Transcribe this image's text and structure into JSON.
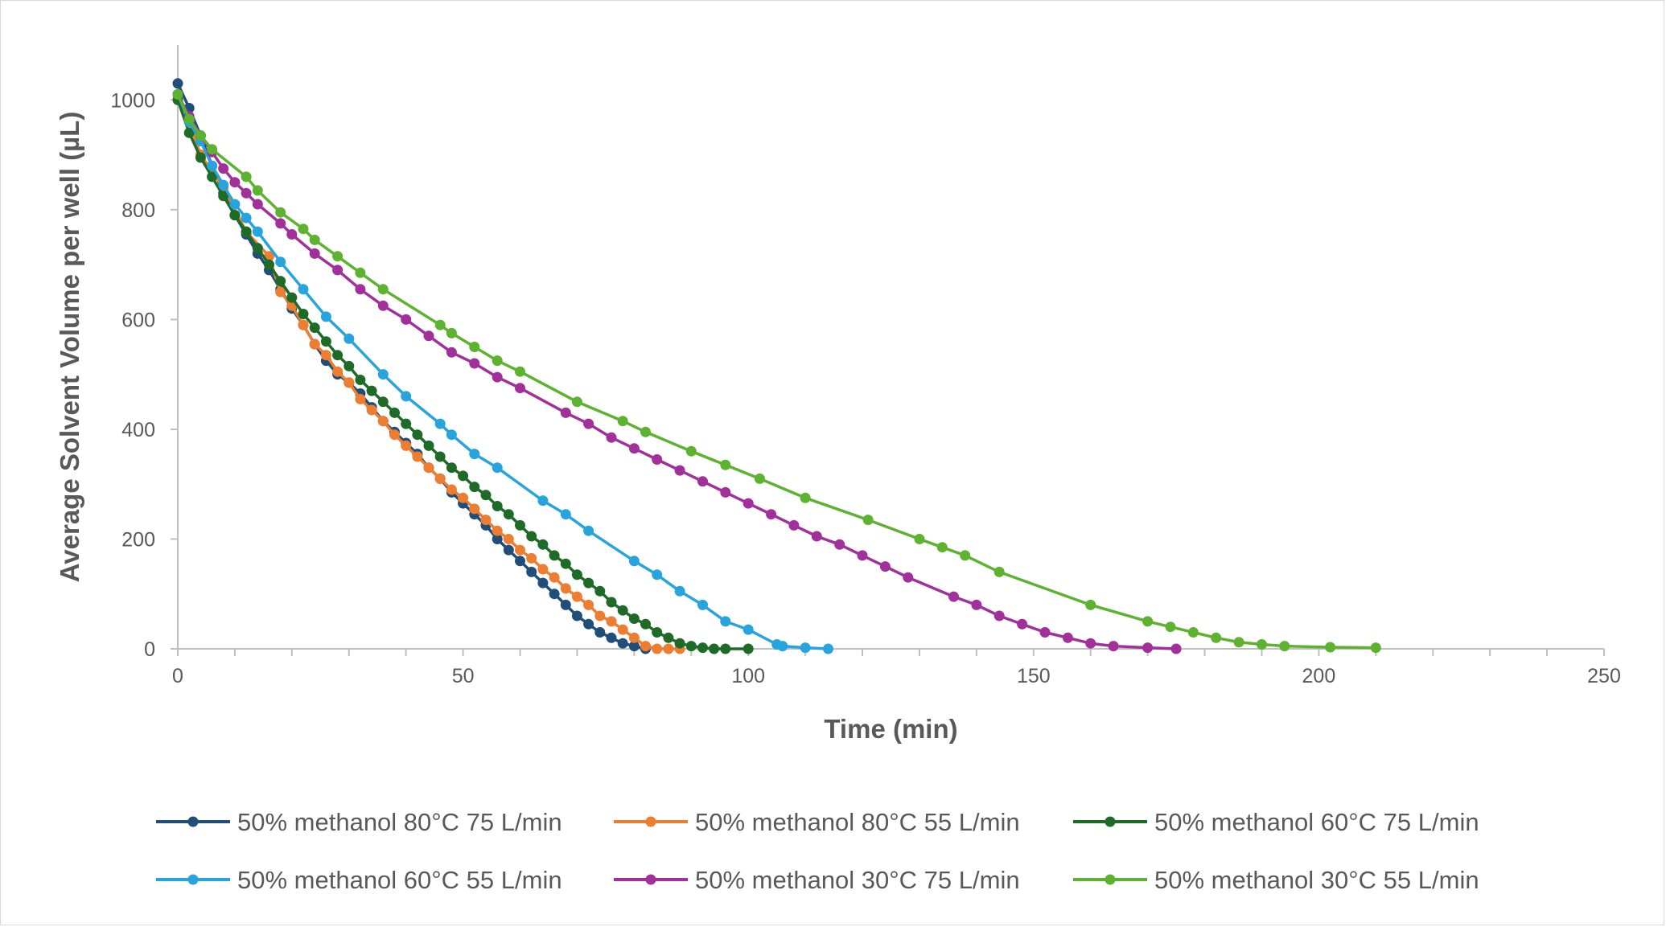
{
  "chart_data": {
    "type": "line",
    "title": "",
    "xlabel": "Time (min)",
    "ylabel": "Average Solvent Volume per well (µL)",
    "xlim": [
      0,
      250
    ],
    "ylim": [
      0,
      1100
    ],
    "xticks": [
      0,
      50,
      100,
      150,
      200,
      250
    ],
    "yticks": [
      0,
      200,
      400,
      600,
      800,
      1000
    ],
    "grid": false,
    "legend_position": "bottom",
    "series": [
      {
        "name": "50% methanol 80°C 75 L/min",
        "color": "#1f4e79",
        "points": [
          [
            0,
            1030
          ],
          [
            2,
            985
          ],
          [
            4,
            935
          ],
          [
            6,
            880
          ],
          [
            8,
            830
          ],
          [
            10,
            790
          ],
          [
            12,
            755
          ],
          [
            14,
            720
          ],
          [
            16,
            690
          ],
          [
            18,
            655
          ],
          [
            20,
            620
          ],
          [
            22,
            590
          ],
          [
            24,
            555
          ],
          [
            26,
            525
          ],
          [
            28,
            500
          ],
          [
            30,
            485
          ],
          [
            32,
            465
          ],
          [
            34,
            440
          ],
          [
            36,
            415
          ],
          [
            38,
            395
          ],
          [
            40,
            375
          ],
          [
            42,
            355
          ],
          [
            44,
            330
          ],
          [
            46,
            310
          ],
          [
            48,
            285
          ],
          [
            50,
            265
          ],
          [
            52,
            245
          ],
          [
            54,
            225
          ],
          [
            56,
            200
          ],
          [
            58,
            180
          ],
          [
            60,
            160
          ],
          [
            62,
            140
          ],
          [
            64,
            120
          ],
          [
            66,
            100
          ],
          [
            68,
            80
          ],
          [
            70,
            60
          ],
          [
            72,
            45
          ],
          [
            74,
            30
          ],
          [
            76,
            20
          ],
          [
            78,
            10
          ],
          [
            80,
            5
          ],
          [
            82,
            0
          ]
        ],
        "end_x": 82
      },
      {
        "name": "50% methanol 80°C 55 L/min",
        "color": "#ed7d31",
        "points": [
          [
            0,
            1010
          ],
          [
            2,
            960
          ],
          [
            4,
            900
          ],
          [
            8,
            840
          ],
          [
            12,
            760
          ],
          [
            16,
            715
          ],
          [
            18,
            650
          ],
          [
            20,
            625
          ],
          [
            22,
            590
          ],
          [
            24,
            555
          ],
          [
            26,
            535
          ],
          [
            28,
            505
          ],
          [
            30,
            485
          ],
          [
            32,
            455
          ],
          [
            34,
            435
          ],
          [
            36,
            415
          ],
          [
            38,
            390
          ],
          [
            40,
            370
          ],
          [
            42,
            350
          ],
          [
            44,
            330
          ],
          [
            46,
            310
          ],
          [
            48,
            290
          ],
          [
            50,
            275
          ],
          [
            52,
            255
          ],
          [
            54,
            235
          ],
          [
            56,
            215
          ],
          [
            58,
            200
          ],
          [
            60,
            180
          ],
          [
            62,
            165
          ],
          [
            64,
            145
          ],
          [
            66,
            130
          ],
          [
            68,
            110
          ],
          [
            70,
            95
          ],
          [
            72,
            80
          ],
          [
            74,
            60
          ],
          [
            76,
            50
          ],
          [
            78,
            35
          ],
          [
            80,
            20
          ],
          [
            82,
            5
          ],
          [
            84,
            0
          ],
          [
            86,
            0
          ],
          [
            88,
            0
          ]
        ],
        "end_x": 88
      },
      {
        "name": "50% methanol 60°C 75 L/min",
        "color": "#1e6b27",
        "points": [
          [
            0,
            1000
          ],
          [
            2,
            940
          ],
          [
            4,
            895
          ],
          [
            6,
            860
          ],
          [
            8,
            825
          ],
          [
            10,
            790
          ],
          [
            12,
            760
          ],
          [
            14,
            730
          ],
          [
            16,
            700
          ],
          [
            18,
            670
          ],
          [
            20,
            640
          ],
          [
            22,
            610
          ],
          [
            24,
            585
          ],
          [
            26,
            560
          ],
          [
            28,
            535
          ],
          [
            30,
            515
          ],
          [
            32,
            490
          ],
          [
            34,
            470
          ],
          [
            36,
            450
          ],
          [
            38,
            430
          ],
          [
            40,
            410
          ],
          [
            42,
            390
          ],
          [
            44,
            370
          ],
          [
            46,
            350
          ],
          [
            48,
            330
          ],
          [
            50,
            315
          ],
          [
            52,
            295
          ],
          [
            54,
            280
          ],
          [
            56,
            260
          ],
          [
            58,
            245
          ],
          [
            60,
            225
          ],
          [
            62,
            205
          ],
          [
            64,
            190
          ],
          [
            66,
            170
          ],
          [
            68,
            155
          ],
          [
            70,
            135
          ],
          [
            72,
            120
          ],
          [
            74,
            105
          ],
          [
            76,
            85
          ],
          [
            78,
            70
          ],
          [
            80,
            55
          ],
          [
            82,
            45
          ],
          [
            84,
            30
          ],
          [
            86,
            20
          ],
          [
            88,
            10
          ],
          [
            90,
            5
          ],
          [
            92,
            2
          ],
          [
            94,
            0
          ],
          [
            96,
            0
          ],
          [
            100,
            0
          ]
        ],
        "end_x": 100
      },
      {
        "name": "50% methanol 60°C 55 L/min",
        "color": "#27a4dd",
        "points": [
          [
            0,
            1010
          ],
          [
            2,
            960
          ],
          [
            4,
            925
          ],
          [
            6,
            880
          ],
          [
            8,
            845
          ],
          [
            10,
            810
          ],
          [
            12,
            785
          ],
          [
            14,
            760
          ],
          [
            18,
            705
          ],
          [
            22,
            655
          ],
          [
            26,
            605
          ],
          [
            30,
            565
          ],
          [
            36,
            500
          ],
          [
            40,
            460
          ],
          [
            46,
            410
          ],
          [
            48,
            390
          ],
          [
            52,
            355
          ],
          [
            56,
            330
          ],
          [
            64,
            270
          ],
          [
            68,
            245
          ],
          [
            72,
            215
          ],
          [
            80,
            160
          ],
          [
            84,
            135
          ],
          [
            88,
            105
          ],
          [
            92,
            80
          ],
          [
            96,
            50
          ],
          [
            100,
            35
          ],
          [
            105,
            8
          ],
          [
            106,
            5
          ],
          [
            110,
            2
          ],
          [
            114,
            0
          ]
        ],
        "end_x": 114
      },
      {
        "name": "50% methanol 30°C 75 L/min",
        "color": "#a1309b",
        "points": [
          [
            0,
            1010
          ],
          [
            2,
            970
          ],
          [
            4,
            935
          ],
          [
            6,
            905
          ],
          [
            8,
            875
          ],
          [
            10,
            850
          ],
          [
            12,
            830
          ],
          [
            14,
            810
          ],
          [
            18,
            775
          ],
          [
            20,
            755
          ],
          [
            24,
            720
          ],
          [
            28,
            690
          ],
          [
            32,
            655
          ],
          [
            36,
            625
          ],
          [
            40,
            600
          ],
          [
            44,
            570
          ],
          [
            48,
            540
          ],
          [
            52,
            520
          ],
          [
            56,
            495
          ],
          [
            60,
            475
          ],
          [
            68,
            430
          ],
          [
            72,
            410
          ],
          [
            76,
            385
          ],
          [
            80,
            365
          ],
          [
            84,
            345
          ],
          [
            88,
            325
          ],
          [
            92,
            305
          ],
          [
            96,
            285
          ],
          [
            100,
            265
          ],
          [
            104,
            245
          ],
          [
            108,
            225
          ],
          [
            112,
            205
          ],
          [
            116,
            190
          ],
          [
            120,
            170
          ],
          [
            124,
            150
          ],
          [
            128,
            130
          ],
          [
            136,
            95
          ],
          [
            140,
            80
          ],
          [
            144,
            60
          ],
          [
            148,
            45
          ],
          [
            152,
            30
          ],
          [
            156,
            20
          ],
          [
            160,
            10
          ],
          [
            164,
            5
          ],
          [
            170,
            2
          ],
          [
            175,
            0
          ]
        ],
        "end_x": 175
      },
      {
        "name": "50% methanol 30°C 55 L/min",
        "color": "#5db230",
        "points": [
          [
            0,
            1010
          ],
          [
            2,
            965
          ],
          [
            4,
            935
          ],
          [
            6,
            910
          ],
          [
            12,
            860
          ],
          [
            14,
            835
          ],
          [
            18,
            795
          ],
          [
            22,
            765
          ],
          [
            24,
            745
          ],
          [
            28,
            715
          ],
          [
            32,
            685
          ],
          [
            36,
            655
          ],
          [
            46,
            590
          ],
          [
            48,
            575
          ],
          [
            52,
            550
          ],
          [
            56,
            525
          ],
          [
            60,
            505
          ],
          [
            70,
            450
          ],
          [
            78,
            415
          ],
          [
            82,
            395
          ],
          [
            90,
            360
          ],
          [
            96,
            335
          ],
          [
            102,
            310
          ],
          [
            110,
            275
          ],
          [
            121,
            235
          ],
          [
            130,
            200
          ],
          [
            134,
            185
          ],
          [
            138,
            170
          ],
          [
            144,
            140
          ],
          [
            160,
            80
          ],
          [
            170,
            50
          ],
          [
            174,
            40
          ],
          [
            178,
            30
          ],
          [
            182,
            20
          ],
          [
            186,
            12
          ],
          [
            190,
            8
          ],
          [
            194,
            5
          ],
          [
            202,
            3
          ],
          [
            210,
            2
          ]
        ],
        "end_x": 210
      }
    ]
  }
}
